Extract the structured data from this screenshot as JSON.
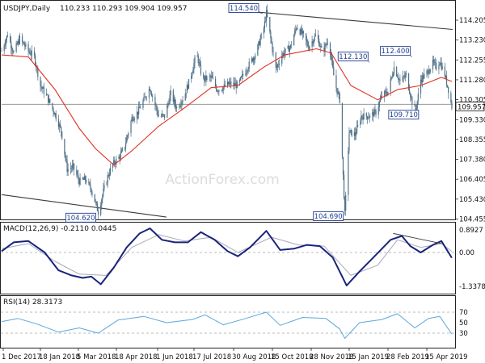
{
  "chart_data": {
    "type": "line",
    "symbol": "USDJPY,Daily",
    "ohlc_label": "110.233 110.293 109.904 109.957",
    "watermark": "ActionForex.com",
    "price_axis_labels": [
      "114.205",
      "113.230",
      "112.255",
      "111.280",
      "110.305",
      "109.330",
      "108.355",
      "107.380",
      "106.405",
      "105.430",
      "104.455"
    ],
    "current_price": "109.957",
    "date_labels": [
      "1 Dec 2017",
      "18 Jan 2018",
      "5 Mar 2018",
      "18 Apr 2018",
      "1 Jun 2018",
      "17 Jul 2018",
      "30 Aug 2018",
      "15 Oct 2018",
      "28 Nov 2018",
      "15 Jan 2019",
      "28 Feb 2019",
      "15 Apr 2019"
    ],
    "price_close_path": [
      [
        "2017-12-01",
        112.7
      ],
      [
        "2017-12-08",
        113.5
      ],
      [
        "2017-12-15",
        112.6
      ],
      [
        "2017-12-22",
        113.3
      ],
      [
        "2018-01-01",
        112.7
      ],
      [
        "2018-01-08",
        112.4
      ],
      [
        "2018-01-15",
        111.0
      ],
      [
        "2018-01-22",
        110.5
      ],
      [
        "2018-02-01",
        109.6
      ],
      [
        "2018-02-08",
        108.8
      ],
      [
        "2018-02-15",
        106.9
      ],
      [
        "2018-02-22",
        107.0
      ],
      [
        "2018-03-01",
        106.3
      ],
      [
        "2018-03-08",
        106.4
      ],
      [
        "2018-03-15",
        105.9
      ],
      [
        "2018-03-23",
        104.8
      ],
      [
        "2018-04-01",
        106.3
      ],
      [
        "2018-04-08",
        107.1
      ],
      [
        "2018-04-15",
        107.4
      ],
      [
        "2018-04-22",
        107.9
      ],
      [
        "2018-05-01",
        109.4
      ],
      [
        "2018-05-08",
        109.7
      ],
      [
        "2018-05-15",
        110.3
      ],
      [
        "2018-05-22",
        110.9
      ],
      [
        "2018-06-01",
        109.5
      ],
      [
        "2018-06-08",
        109.5
      ],
      [
        "2018-06-15",
        110.6
      ],
      [
        "2018-06-22",
        109.9
      ],
      [
        "2018-07-01",
        110.5
      ],
      [
        "2018-07-08",
        111.4
      ],
      [
        "2018-07-15",
        112.6
      ],
      [
        "2018-07-22",
        111.3
      ],
      [
        "2018-08-01",
        111.4
      ],
      [
        "2018-08-08",
        110.8
      ],
      [
        "2018-08-15",
        110.9
      ],
      [
        "2018-08-22",
        111.1
      ],
      [
        "2018-09-01",
        111.0
      ],
      [
        "2018-09-08",
        111.6
      ],
      [
        "2018-09-15",
        112.1
      ],
      [
        "2018-09-22",
        112.6
      ],
      [
        "2018-10-01",
        113.8
      ],
      [
        "2018-10-04",
        114.55
      ],
      [
        "2018-10-15",
        111.8
      ],
      [
        "2018-10-22",
        112.5
      ],
      [
        "2018-11-01",
        112.9
      ],
      [
        "2018-11-08",
        113.9
      ],
      [
        "2018-11-15",
        113.5
      ],
      [
        "2018-11-22",
        112.9
      ],
      [
        "2018-12-01",
        113.5
      ],
      [
        "2018-12-08",
        112.6
      ],
      [
        "2018-12-15",
        113.3
      ],
      [
        "2018-12-22",
        111.2
      ],
      [
        "2018-12-28",
        110.3
      ],
      [
        "2019-01-03",
        104.69
      ],
      [
        "2019-01-08",
        108.7
      ],
      [
        "2019-01-15",
        108.6
      ],
      [
        "2019-01-22",
        109.5
      ],
      [
        "2019-02-01",
        109.5
      ],
      [
        "2019-02-08",
        109.7
      ],
      [
        "2019-02-15",
        110.5
      ],
      [
        "2019-02-22",
        110.7
      ],
      [
        "2019-03-01",
        111.9
      ],
      [
        "2019-03-08",
        111.2
      ],
      [
        "2019-03-15",
        111.5
      ],
      [
        "2019-03-22",
        110.2
      ],
      [
        "2019-03-26",
        109.71
      ],
      [
        "2019-04-01",
        111.3
      ],
      [
        "2019-04-08",
        111.6
      ],
      [
        "2019-04-15",
        112.1
      ],
      [
        "2019-04-19",
        111.9
      ],
      [
        "2019-04-23",
        112.2
      ],
      [
        "2019-04-29",
        111.5
      ],
      [
        "2019-05-03",
        110.8
      ],
      [
        "2019-05-07",
        109.957
      ]
    ],
    "moving_average_path": [
      [
        "2017-12-01",
        112.5
      ],
      [
        "2018-01-01",
        112.4
      ],
      [
        "2018-02-01",
        110.8
      ],
      [
        "2018-03-01",
        108.9
      ],
      [
        "2018-03-20",
        107.9
      ],
      [
        "2018-04-10",
        107.1
      ],
      [
        "2018-05-01",
        107.8
      ],
      [
        "2018-06-01",
        109.0
      ],
      [
        "2018-07-01",
        109.9
      ],
      [
        "2018-08-01",
        110.9
      ],
      [
        "2018-09-01",
        111.0
      ],
      [
        "2018-10-01",
        111.9
      ],
      [
        "2018-10-25",
        112.5
      ],
      [
        "2018-12-01",
        112.8
      ],
      [
        "2018-12-18",
        112.6
      ],
      [
        "2019-01-10",
        111.0
      ],
      [
        "2019-02-10",
        110.3
      ],
      [
        "2019-03-05",
        110.8
      ],
      [
        "2019-04-01",
        111.0
      ],
      [
        "2019-04-25",
        111.4
      ],
      [
        "2019-05-07",
        111.2
      ]
    ],
    "trendlines": [
      {
        "from": [
          "2018-09-24",
          114.6
        ],
        "to": [
          "2019-05-08",
          113.75
        ]
      },
      {
        "from": [
          "2017-12-01",
          105.65
        ],
        "to": [
          "2018-06-10",
          104.55
        ]
      },
      {
        "from": [
          "2017-12-01",
          110.08
        ],
        "to": [
          "2019-05-08",
          110.08
        ]
      }
    ],
    "annotations": [
      {
        "label": "114.540",
        "x": "2018-09-26",
        "y": 114.54
      },
      {
        "label": "104.620",
        "x": "2018-03-22",
        "y": 104.62
      },
      {
        "label": "104.690",
        "x": "2019-01-03",
        "y": 104.69
      },
      {
        "label": "112.130",
        "x": "2019-01-28",
        "y": 112.13
      },
      {
        "label": "112.400",
        "x": "2019-03-18",
        "y": 112.4
      },
      {
        "label": "109.710",
        "x": "2019-03-07",
        "y": 109.71
      }
    ],
    "macd": {
      "label": "MACD(12,26,9) -0.2110 0.0445",
      "axis_labels": [
        "0.8927",
        "0.00",
        "-1.3378"
      ],
      "macd_path": [
        [
          "2017-12-01",
          0.05
        ],
        [
          "2017-12-15",
          0.4
        ],
        [
          "2018-01-01",
          0.45
        ],
        [
          "2018-01-20",
          0.0
        ],
        [
          "2018-02-05",
          -0.7
        ],
        [
          "2018-02-20",
          -0.9
        ],
        [
          "2018-03-05",
          -1.0
        ],
        [
          "2018-03-15",
          -0.95
        ],
        [
          "2018-03-26",
          -1.25
        ],
        [
          "2018-04-10",
          -0.6
        ],
        [
          "2018-04-25",
          0.2
        ],
        [
          "2018-05-10",
          0.75
        ],
        [
          "2018-05-22",
          0.95
        ],
        [
          "2018-06-05",
          0.5
        ],
        [
          "2018-06-20",
          0.4
        ],
        [
          "2018-07-05",
          0.4
        ],
        [
          "2018-07-20",
          0.8
        ],
        [
          "2018-08-05",
          0.5
        ],
        [
          "2018-08-20",
          0.05
        ],
        [
          "2018-09-01",
          -0.15
        ],
        [
          "2018-09-15",
          0.2
        ],
        [
          "2018-10-04",
          0.85
        ],
        [
          "2018-10-20",
          0.1
        ],
        [
          "2018-11-05",
          0.15
        ],
        [
          "2018-11-20",
          0.3
        ],
        [
          "2018-12-05",
          0.25
        ],
        [
          "2018-12-20",
          -0.2
        ],
        [
          "2019-01-05",
          -1.3
        ],
        [
          "2019-01-20",
          -0.75
        ],
        [
          "2019-02-05",
          -0.2
        ],
        [
          "2019-02-25",
          0.5
        ],
        [
          "2019-03-10",
          0.65
        ],
        [
          "2019-03-20",
          0.25
        ],
        [
          "2019-04-01",
          0.0
        ],
        [
          "2019-04-15",
          0.3
        ],
        [
          "2019-04-25",
          0.45
        ],
        [
          "2019-05-07",
          -0.21
        ]
      ],
      "signal_path": [
        [
          "2017-12-01",
          0.15
        ],
        [
          "2018-01-01",
          0.35
        ],
        [
          "2018-02-01",
          -0.35
        ],
        [
          "2018-03-01",
          -0.85
        ],
        [
          "2018-04-01",
          -0.9
        ],
        [
          "2018-05-01",
          0.2
        ],
        [
          "2018-06-01",
          0.7
        ],
        [
          "2018-07-01",
          0.45
        ],
        [
          "2018-08-01",
          0.6
        ],
        [
          "2018-09-01",
          0.0
        ],
        [
          "2018-10-10",
          0.6
        ],
        [
          "2018-11-10",
          0.3
        ],
        [
          "2018-12-10",
          0.25
        ],
        [
          "2019-01-10",
          -0.9
        ],
        [
          "2019-02-10",
          -0.5
        ],
        [
          "2019-03-05",
          0.5
        ],
        [
          "2019-04-01",
          0.2
        ],
        [
          "2019-04-25",
          0.35
        ],
        [
          "2019-05-07",
          0.0445
        ]
      ],
      "trendline": {
        "from": [
          "2019-02-28",
          0.75
        ],
        "to": [
          "2019-04-25",
          0.35
        ]
      }
    },
    "rsi": {
      "label": "RSI(14) 28.3173",
      "axis_labels": [
        "70",
        "50",
        "30"
      ],
      "path": [
        [
          "2017-12-01",
          52
        ],
        [
          "2017-12-20",
          58
        ],
        [
          "2018-01-10",
          48
        ],
        [
          "2018-02-05",
          32
        ],
        [
          "2018-03-01",
          40
        ],
        [
          "2018-03-23",
          30
        ],
        [
          "2018-04-15",
          55
        ],
        [
          "2018-05-15",
          62
        ],
        [
          "2018-06-10",
          50
        ],
        [
          "2018-07-10",
          56
        ],
        [
          "2018-07-25",
          65
        ],
        [
          "2018-08-15",
          46
        ],
        [
          "2018-09-10",
          58
        ],
        [
          "2018-10-04",
          70
        ],
        [
          "2018-10-20",
          45
        ],
        [
          "2018-11-15",
          60
        ],
        [
          "2018-12-12",
          58
        ],
        [
          "2018-12-28",
          38
        ],
        [
          "2019-01-03",
          20
        ],
        [
          "2019-01-20",
          50
        ],
        [
          "2019-02-15",
          56
        ],
        [
          "2019-03-05",
          67
        ],
        [
          "2019-03-25",
          40
        ],
        [
          "2019-04-10",
          58
        ],
        [
          "2019-04-23",
          62
        ],
        [
          "2019-05-07",
          28.3
        ]
      ]
    },
    "colors": {
      "candle": "#4f6f86",
      "moving_average": "#e0301e",
      "trendline": "#3a3a3a",
      "macd_line": "#1a237e",
      "signal_line": "#a9a9b8",
      "rsi_line": "#5aa7dc",
      "annotation": "#223f8f",
      "background": "#ffffff"
    }
  }
}
